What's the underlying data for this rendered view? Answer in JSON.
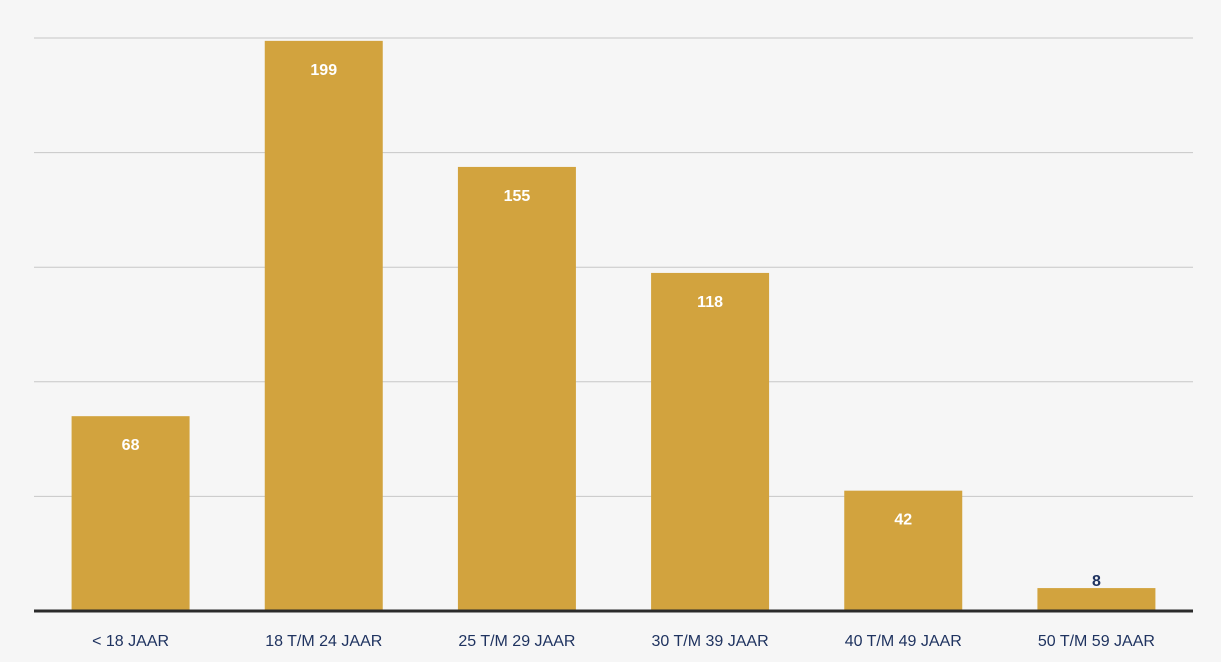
{
  "chart_data": {
    "type": "bar",
    "categories": [
      "< 18 JAAR",
      "18 T/M 24 JAAR",
      "25 T/M 29 JAAR",
      "30 T/M 39 JAAR",
      "40 T/M 49 JAAR",
      "50 T/M 59 JAAR"
    ],
    "values": [
      68,
      199,
      155,
      118,
      42,
      8
    ],
    "data_labels": [
      "68",
      "199",
      "155",
      "118",
      "42",
      "8"
    ],
    "ylim": [
      0,
      200
    ],
    "grid": true,
    "legend": "none",
    "colors": {
      "bar": "#d2a33e",
      "label_inside": "#ffffff",
      "label_outside": "#1f3360",
      "category_text": "#1f3360",
      "grid": "#c7c7c7",
      "axis": "#2b2b2b",
      "background": "#f6f6f6"
    }
  }
}
